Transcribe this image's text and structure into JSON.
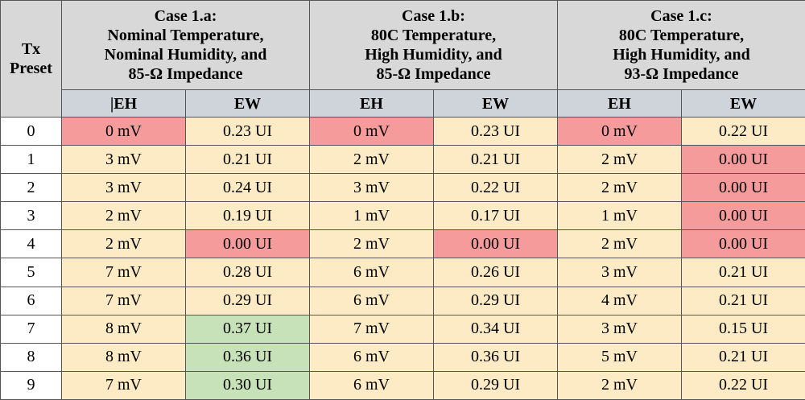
{
  "header": {
    "preset_label": "Tx Preset",
    "cases": [
      {
        "line1": "Case 1.a:",
        "line2": "Nominal Temperature,",
        "line3": "Nominal Humidity, and",
        "line4": "85-Ω Impedance"
      },
      {
        "line1": "Case 1.b:",
        "line2": "80C Temperature,",
        "line3": "High Humidity, and",
        "line4": "85-Ω Impedance"
      },
      {
        "line1": "Case 1.c:",
        "line2": "80C Temperature,",
        "line3": "High Humidity, and",
        "line4": "93-Ω Impedance"
      }
    ],
    "sub": [
      "|EH",
      "EW",
      "EH",
      "EW",
      "EH",
      "EW"
    ]
  },
  "colors": {
    "normal": "#fcebc4",
    "bad": "#f59b9b",
    "good": "#c7e2b8",
    "header": "#d8d8d8"
  },
  "rows": [
    {
      "preset": "0",
      "cells": [
        {
          "v": "0 mV",
          "s": "bad"
        },
        {
          "v": "0.23 UI",
          "s": "normal"
        },
        {
          "v": "0 mV",
          "s": "bad"
        },
        {
          "v": "0.23 UI",
          "s": "normal"
        },
        {
          "v": "0 mV",
          "s": "bad"
        },
        {
          "v": "0.22 UI",
          "s": "normal"
        }
      ]
    },
    {
      "preset": "1",
      "cells": [
        {
          "v": "3 mV",
          "s": "normal"
        },
        {
          "v": "0.21 UI",
          "s": "normal"
        },
        {
          "v": "2 mV",
          "s": "normal"
        },
        {
          "v": "0.21 UI",
          "s": "normal"
        },
        {
          "v": "2 mV",
          "s": "normal"
        },
        {
          "v": "0.00 UI",
          "s": "bad"
        }
      ]
    },
    {
      "preset": "2",
      "cells": [
        {
          "v": "3 mV",
          "s": "normal"
        },
        {
          "v": "0.24 UI",
          "s": "normal"
        },
        {
          "v": "3 mV",
          "s": "normal"
        },
        {
          "v": "0.22 UI",
          "s": "normal"
        },
        {
          "v": "2 mV",
          "s": "normal"
        },
        {
          "v": "0.00 UI",
          "s": "bad"
        }
      ]
    },
    {
      "preset": "3",
      "cells": [
        {
          "v": "2 mV",
          "s": "normal"
        },
        {
          "v": "0.19 UI",
          "s": "normal"
        },
        {
          "v": "1 mV",
          "s": "normal"
        },
        {
          "v": "0.17 UI",
          "s": "normal"
        },
        {
          "v": "1 mV",
          "s": "normal"
        },
        {
          "v": "0.00 UI",
          "s": "bad"
        }
      ]
    },
    {
      "preset": "4",
      "cells": [
        {
          "v": "2 mV",
          "s": "normal"
        },
        {
          "v": "0.00 UI",
          "s": "bad"
        },
        {
          "v": "2 mV",
          "s": "normal"
        },
        {
          "v": "0.00 UI",
          "s": "bad"
        },
        {
          "v": "2 mV",
          "s": "normal"
        },
        {
          "v": "0.00 UI",
          "s": "bad"
        }
      ]
    },
    {
      "preset": "5",
      "cells": [
        {
          "v": "7 mV",
          "s": "normal"
        },
        {
          "v": "0.28 UI",
          "s": "normal"
        },
        {
          "v": "6 mV",
          "s": "normal"
        },
        {
          "v": "0.26 UI",
          "s": "normal"
        },
        {
          "v": "3 mV",
          "s": "normal"
        },
        {
          "v": "0.21 UI",
          "s": "normal"
        }
      ]
    },
    {
      "preset": "6",
      "cells": [
        {
          "v": "7 mV",
          "s": "normal"
        },
        {
          "v": "0.29 UI",
          "s": "normal"
        },
        {
          "v": "6 mV",
          "s": "normal"
        },
        {
          "v": "0.29 UI",
          "s": "normal"
        },
        {
          "v": "4 mV",
          "s": "normal"
        },
        {
          "v": "0.21 UI",
          "s": "normal"
        }
      ]
    },
    {
      "preset": "7",
      "cells": [
        {
          "v": "8 mV",
          "s": "normal"
        },
        {
          "v": "0.37 UI",
          "s": "good"
        },
        {
          "v": "7 mV",
          "s": "normal"
        },
        {
          "v": "0.34 UI",
          "s": "normal"
        },
        {
          "v": "3 mV",
          "s": "normal"
        },
        {
          "v": "0.15 UI",
          "s": "normal"
        }
      ]
    },
    {
      "preset": "8",
      "cells": [
        {
          "v": "8 mV",
          "s": "normal"
        },
        {
          "v": "0.36 UI",
          "s": "good"
        },
        {
          "v": "6 mV",
          "s": "normal"
        },
        {
          "v": "0.36 UI",
          "s": "normal"
        },
        {
          "v": "5 mV",
          "s": "normal"
        },
        {
          "v": "0.21 UI",
          "s": "normal"
        }
      ]
    },
    {
      "preset": "9",
      "cells": [
        {
          "v": "7 mV",
          "s": "normal"
        },
        {
          "v": "0.30 UI",
          "s": "good"
        },
        {
          "v": "6 mV",
          "s": "normal"
        },
        {
          "v": "0.29 UI",
          "s": "normal"
        },
        {
          "v": "2 mV",
          "s": "normal"
        },
        {
          "v": "0.22 UI",
          "s": "normal"
        }
      ]
    }
  ]
}
